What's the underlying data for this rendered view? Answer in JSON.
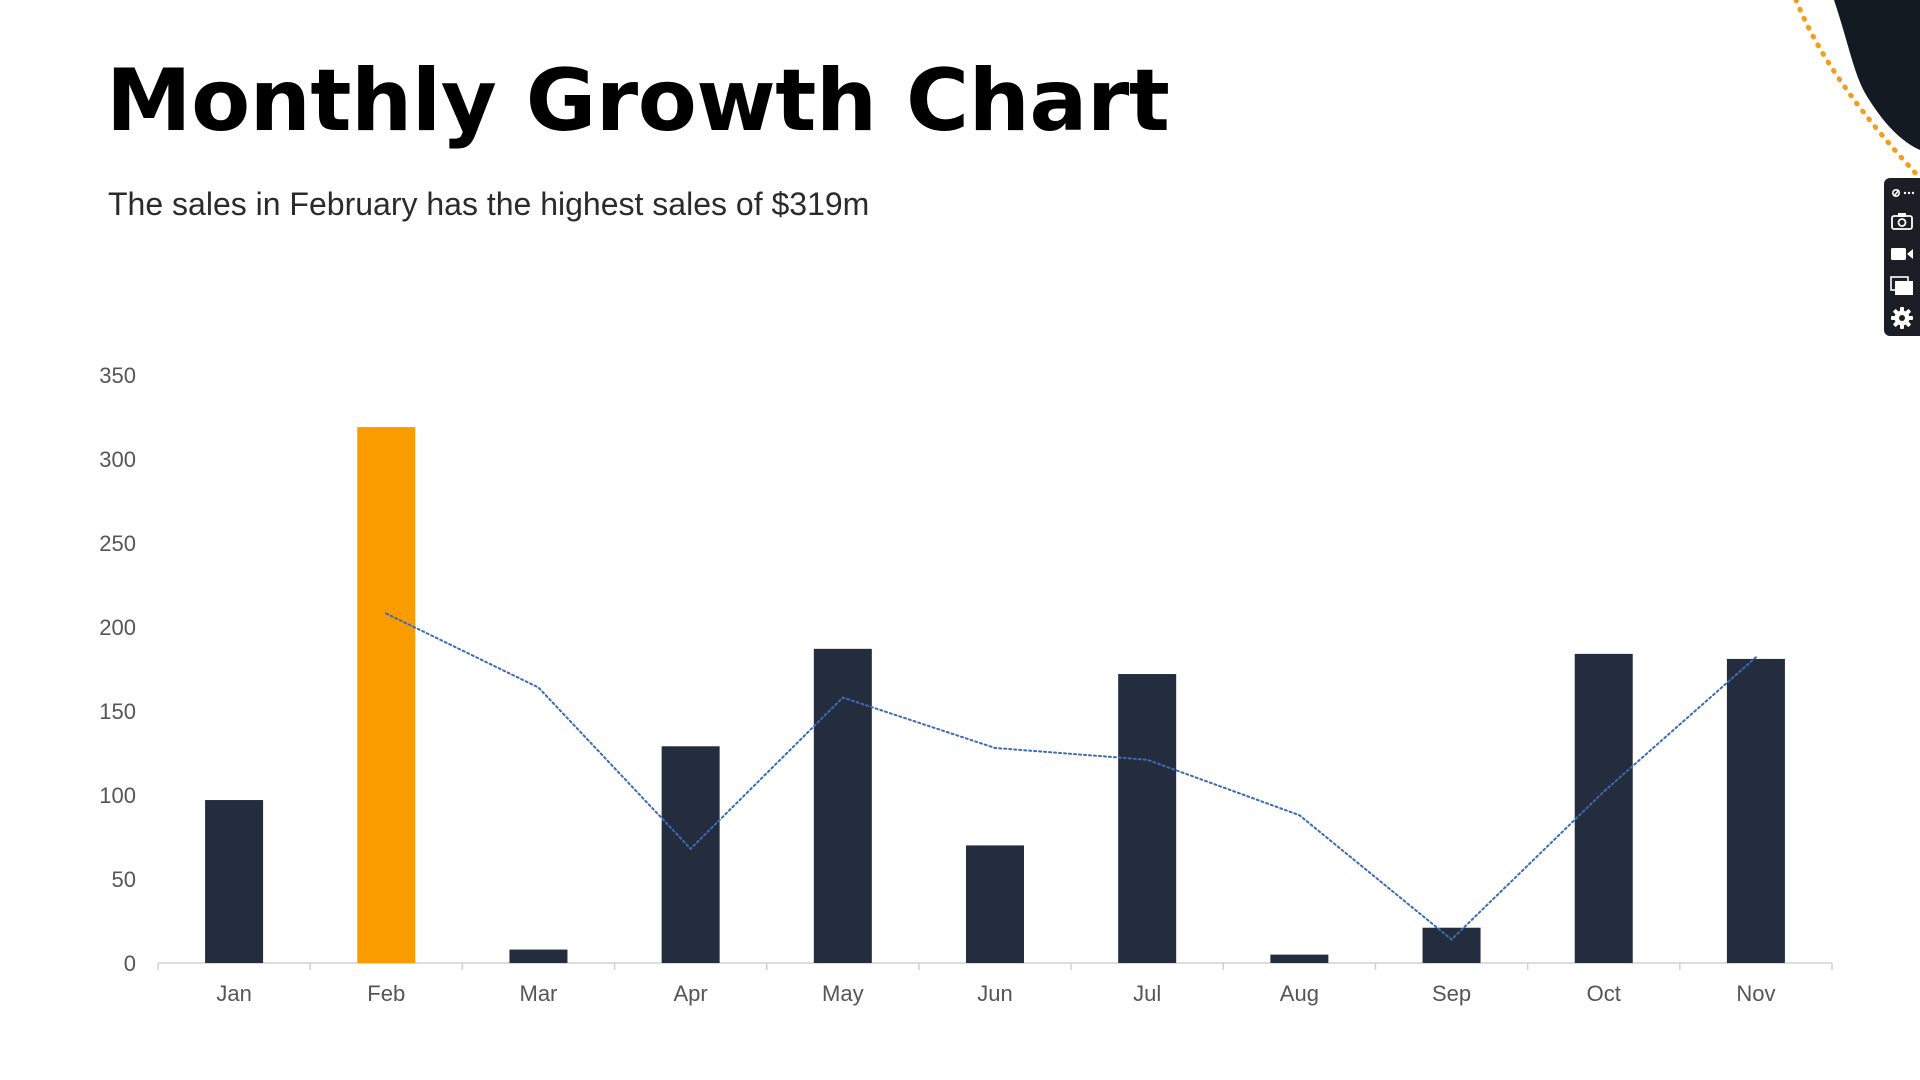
{
  "title": "Monthly Growth Chart",
  "subtitle": "The sales in February has the highest sales of $319m",
  "colors": {
    "bar": "#242d3d",
    "highlight": "#fa9b00",
    "trend_line": "#3b6bb5",
    "decor_dark": "#141a22",
    "decor_dots": "#f59c1a",
    "toolbar": "#1b1e24"
  },
  "toolbar": {
    "icons": [
      "link-icon",
      "camera-icon",
      "video-icon",
      "window-icon",
      "gear-icon"
    ]
  },
  "chart_data": {
    "type": "bar",
    "categories": [
      "Jan",
      "Feb",
      "Mar",
      "Apr",
      "May",
      "Jun",
      "Jul",
      "Aug",
      "Sep",
      "Oct",
      "Nov"
    ],
    "values": [
      97,
      319,
      8,
      129,
      187,
      70,
      172,
      5,
      21,
      184,
      181
    ],
    "highlight_index": 1,
    "trend_line": {
      "style": "dotted",
      "x": [
        "Feb",
        "Mar",
        "Apr",
        "May",
        "Jun",
        "Jul",
        "Aug",
        "Sep",
        "Oct",
        "Nov"
      ],
      "values": [
        208,
        164,
        68,
        158,
        128,
        121,
        88,
        14,
        102,
        182
      ]
    },
    "ylim": [
      0,
      350
    ],
    "yticks": [
      0,
      50,
      100,
      150,
      200,
      250,
      300,
      350
    ],
    "title": "",
    "xlabel": "",
    "ylabel": "",
    "grid": false,
    "legend": "none"
  }
}
